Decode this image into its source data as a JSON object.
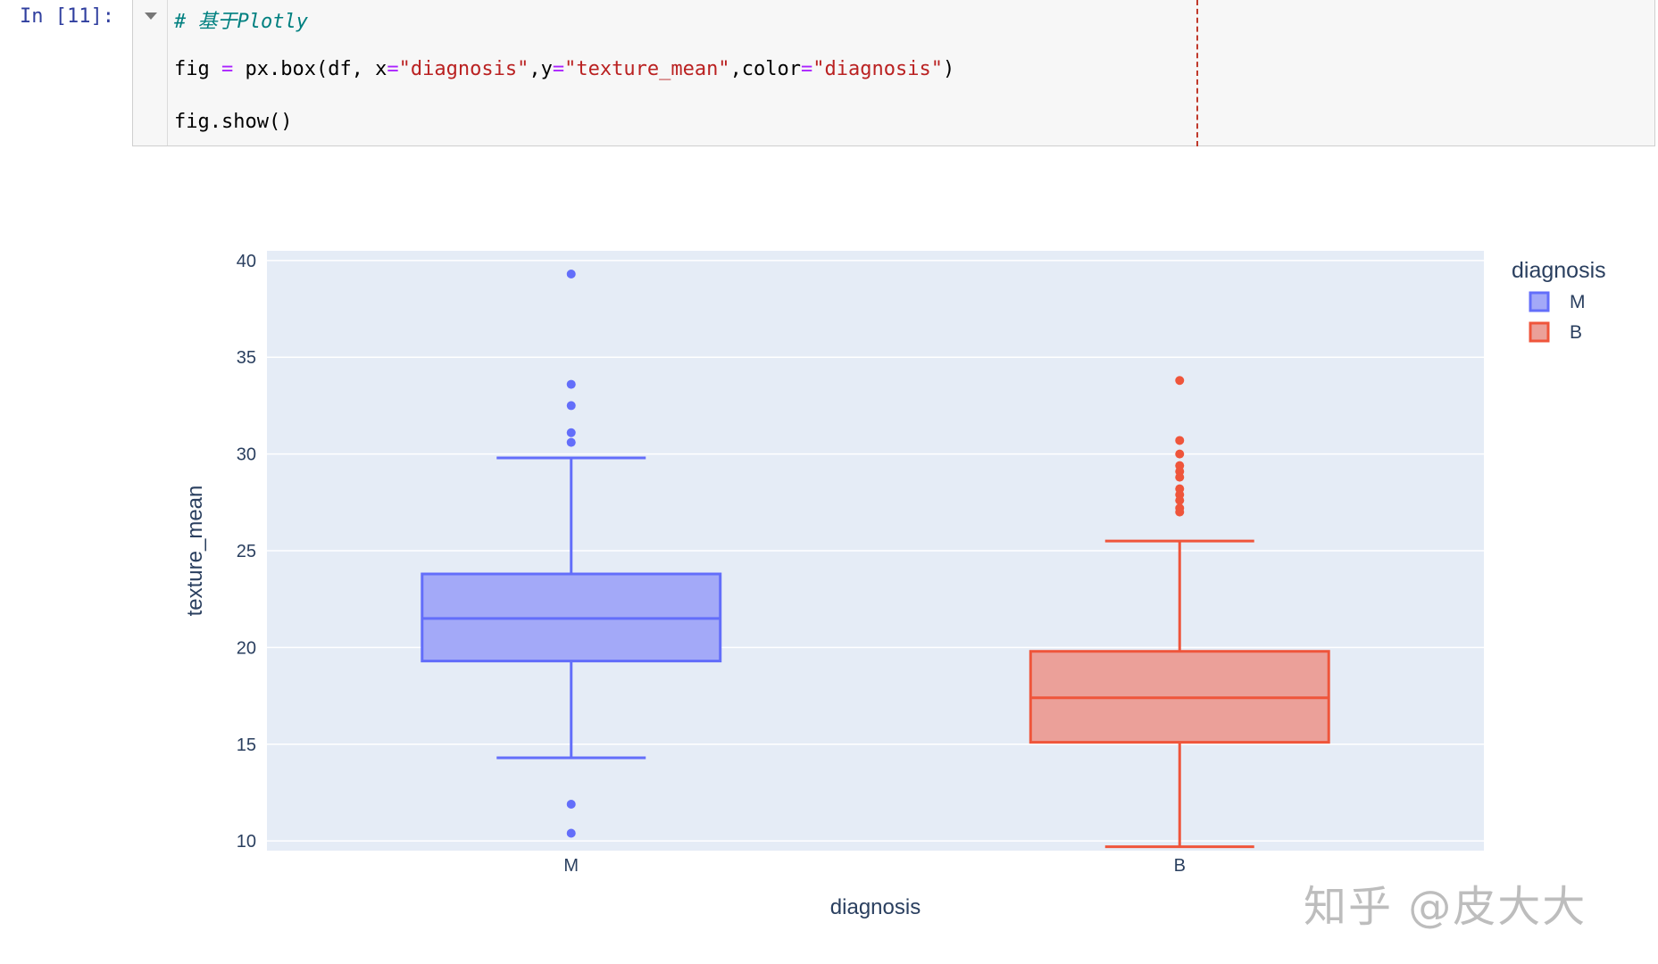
{
  "cell": {
    "prompt": "In [11]:",
    "comment": "# 基于Plotly",
    "code_line": {
      "prefix": "fig ",
      "eq": "=",
      "call": " px.box(df, x",
      "eq2": "=",
      "x_val": "\"diagnosis\"",
      "sep1": ",y",
      "eq3": "=",
      "y_val": "\"texture_mean\"",
      "sep2": ",color",
      "eq4": "=",
      "color_val": "\"diagnosis\"",
      "close": ")"
    },
    "show_line": "fig.show()"
  },
  "chart_data": {
    "type": "box",
    "xlabel": "diagnosis",
    "ylabel": "texture_mean",
    "ylim": [
      9.5,
      40.5
    ],
    "yticks": [
      10,
      15,
      20,
      25,
      30,
      35,
      40
    ],
    "categories": [
      "M",
      "B"
    ],
    "legend": {
      "title": "diagnosis",
      "position": "top-right"
    },
    "series": [
      {
        "name": "M",
        "color": "#636efa",
        "fill": "#a3a9f8",
        "whisker_low": 14.3,
        "q1": 19.3,
        "median": 21.5,
        "q3": 23.8,
        "whisker_high": 29.8,
        "outliers": [
          39.3,
          33.6,
          32.5,
          31.1,
          30.6,
          11.9,
          10.4
        ]
      },
      {
        "name": "B",
        "color": "#ef553b",
        "fill": "#eba099",
        "whisker_low": 9.7,
        "q1": 15.1,
        "median": 17.4,
        "q3": 19.8,
        "whisker_high": 25.5,
        "outliers": [
          33.8,
          30.7,
          30.0,
          29.4,
          29.1,
          28.8,
          28.2,
          27.9,
          27.6,
          27.2,
          27.0
        ]
      }
    ],
    "grid": true
  },
  "watermark": "知乎 @皮大大"
}
